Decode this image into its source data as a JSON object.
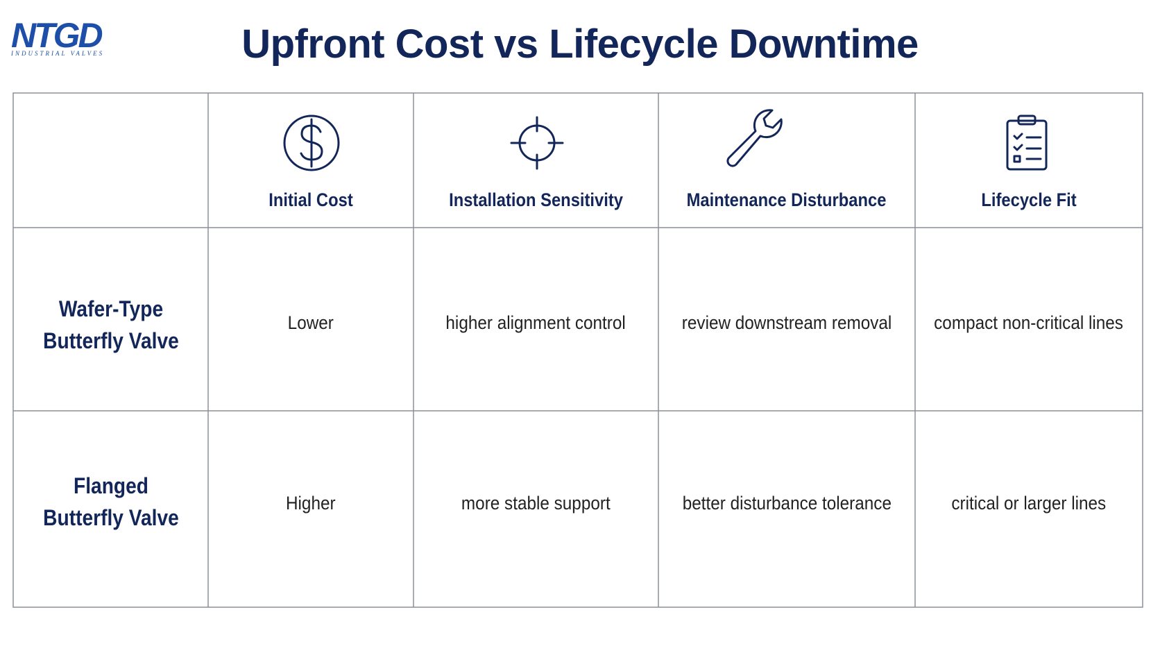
{
  "logo": {
    "name": "NTGD",
    "tagline": "INDUSTRIAL VALVES"
  },
  "title": "Upfront Cost vs Lifecycle Downtime",
  "table": {
    "headers": [
      "Initial Cost",
      "Installation Sensitivity",
      "Maintenance Disturbance",
      "Lifecycle Fit"
    ],
    "rows": [
      {
        "label": "Wafer-Type Butterfly Valve",
        "cells": [
          "Lower",
          "higher alignment control",
          "review downstream removal",
          "compact non-critical lines"
        ]
      },
      {
        "label": "Flanged Butterfly Valve",
        "cells": [
          "Higher",
          "more stable support",
          "better disturbance tolerance",
          "critical or larger lines"
        ]
      }
    ]
  }
}
